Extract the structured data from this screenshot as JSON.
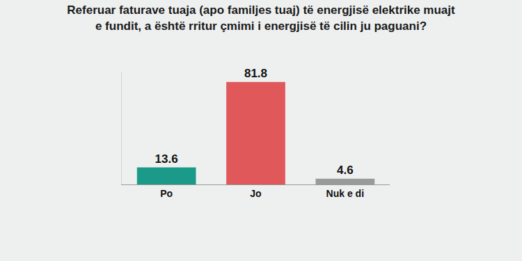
{
  "chart_data": {
    "type": "bar",
    "title": "Referuar faturave tuaja (apo familjes tuaj) të energjisë elektrike muajt\ne fundit, a është rritur çmimi i energjisë të cilin ju paguani?",
    "categories": [
      "Po",
      "Jo",
      "Nuk e di"
    ],
    "values": [
      13.6,
      81.8,
      4.6
    ],
    "colors": [
      "#1b9a8a",
      "#e0585a",
      "#9a9a9a"
    ],
    "ylim": [
      0,
      90
    ],
    "yticks": [],
    "grid": false,
    "data_labels": true,
    "tick_labels": "x"
  }
}
